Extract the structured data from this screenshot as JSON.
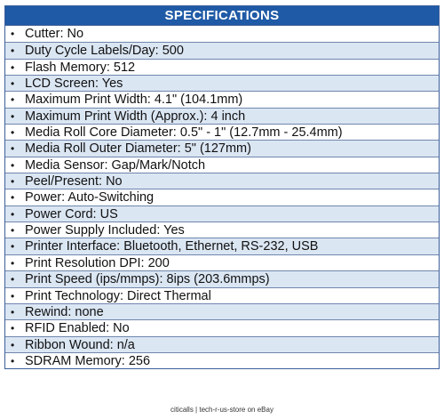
{
  "header": {
    "title": "SPECIFICATIONS"
  },
  "specs": [
    "Cutter: No",
    "Duty Cycle Labels/Day: 500",
    "Flash Memory: 512",
    "LCD Screen: Yes",
    "Maximum Print Width: 4.1\" (104.1mm)",
    "Maximum Print Width (Approx.): 4 inch",
    "Media Roll Core Diameter: 0.5\" - 1\" (12.7mm - 25.4mm)",
    "Media Roll Outer Diameter: 5\" (127mm)",
    "Media Sensor: Gap/Mark/Notch",
    "Peel/Present: No",
    "Power: Auto-Switching",
    "Power Cord: US",
    "Power Supply Included: Yes",
    "Printer Interface: Bluetooth, Ethernet, RS-232, USB",
    "Print Resolution DPI: 200",
    "Print Speed (ips/mmps): 8ips (203.6mmps)",
    "Print Technology: Direct Thermal",
    "Rewind: none",
    "RFID Enabled: No",
    "Ribbon Wound: n/a",
    "SDRAM Memory: 256"
  ],
  "bullet": "•",
  "footer": {
    "text": "citicalls | tech-r-us-store on eBay"
  },
  "colors": {
    "header_bg": "#1f5aa6",
    "alt_row_bg": "#dbe6f3",
    "border": "#3b5f9a"
  }
}
